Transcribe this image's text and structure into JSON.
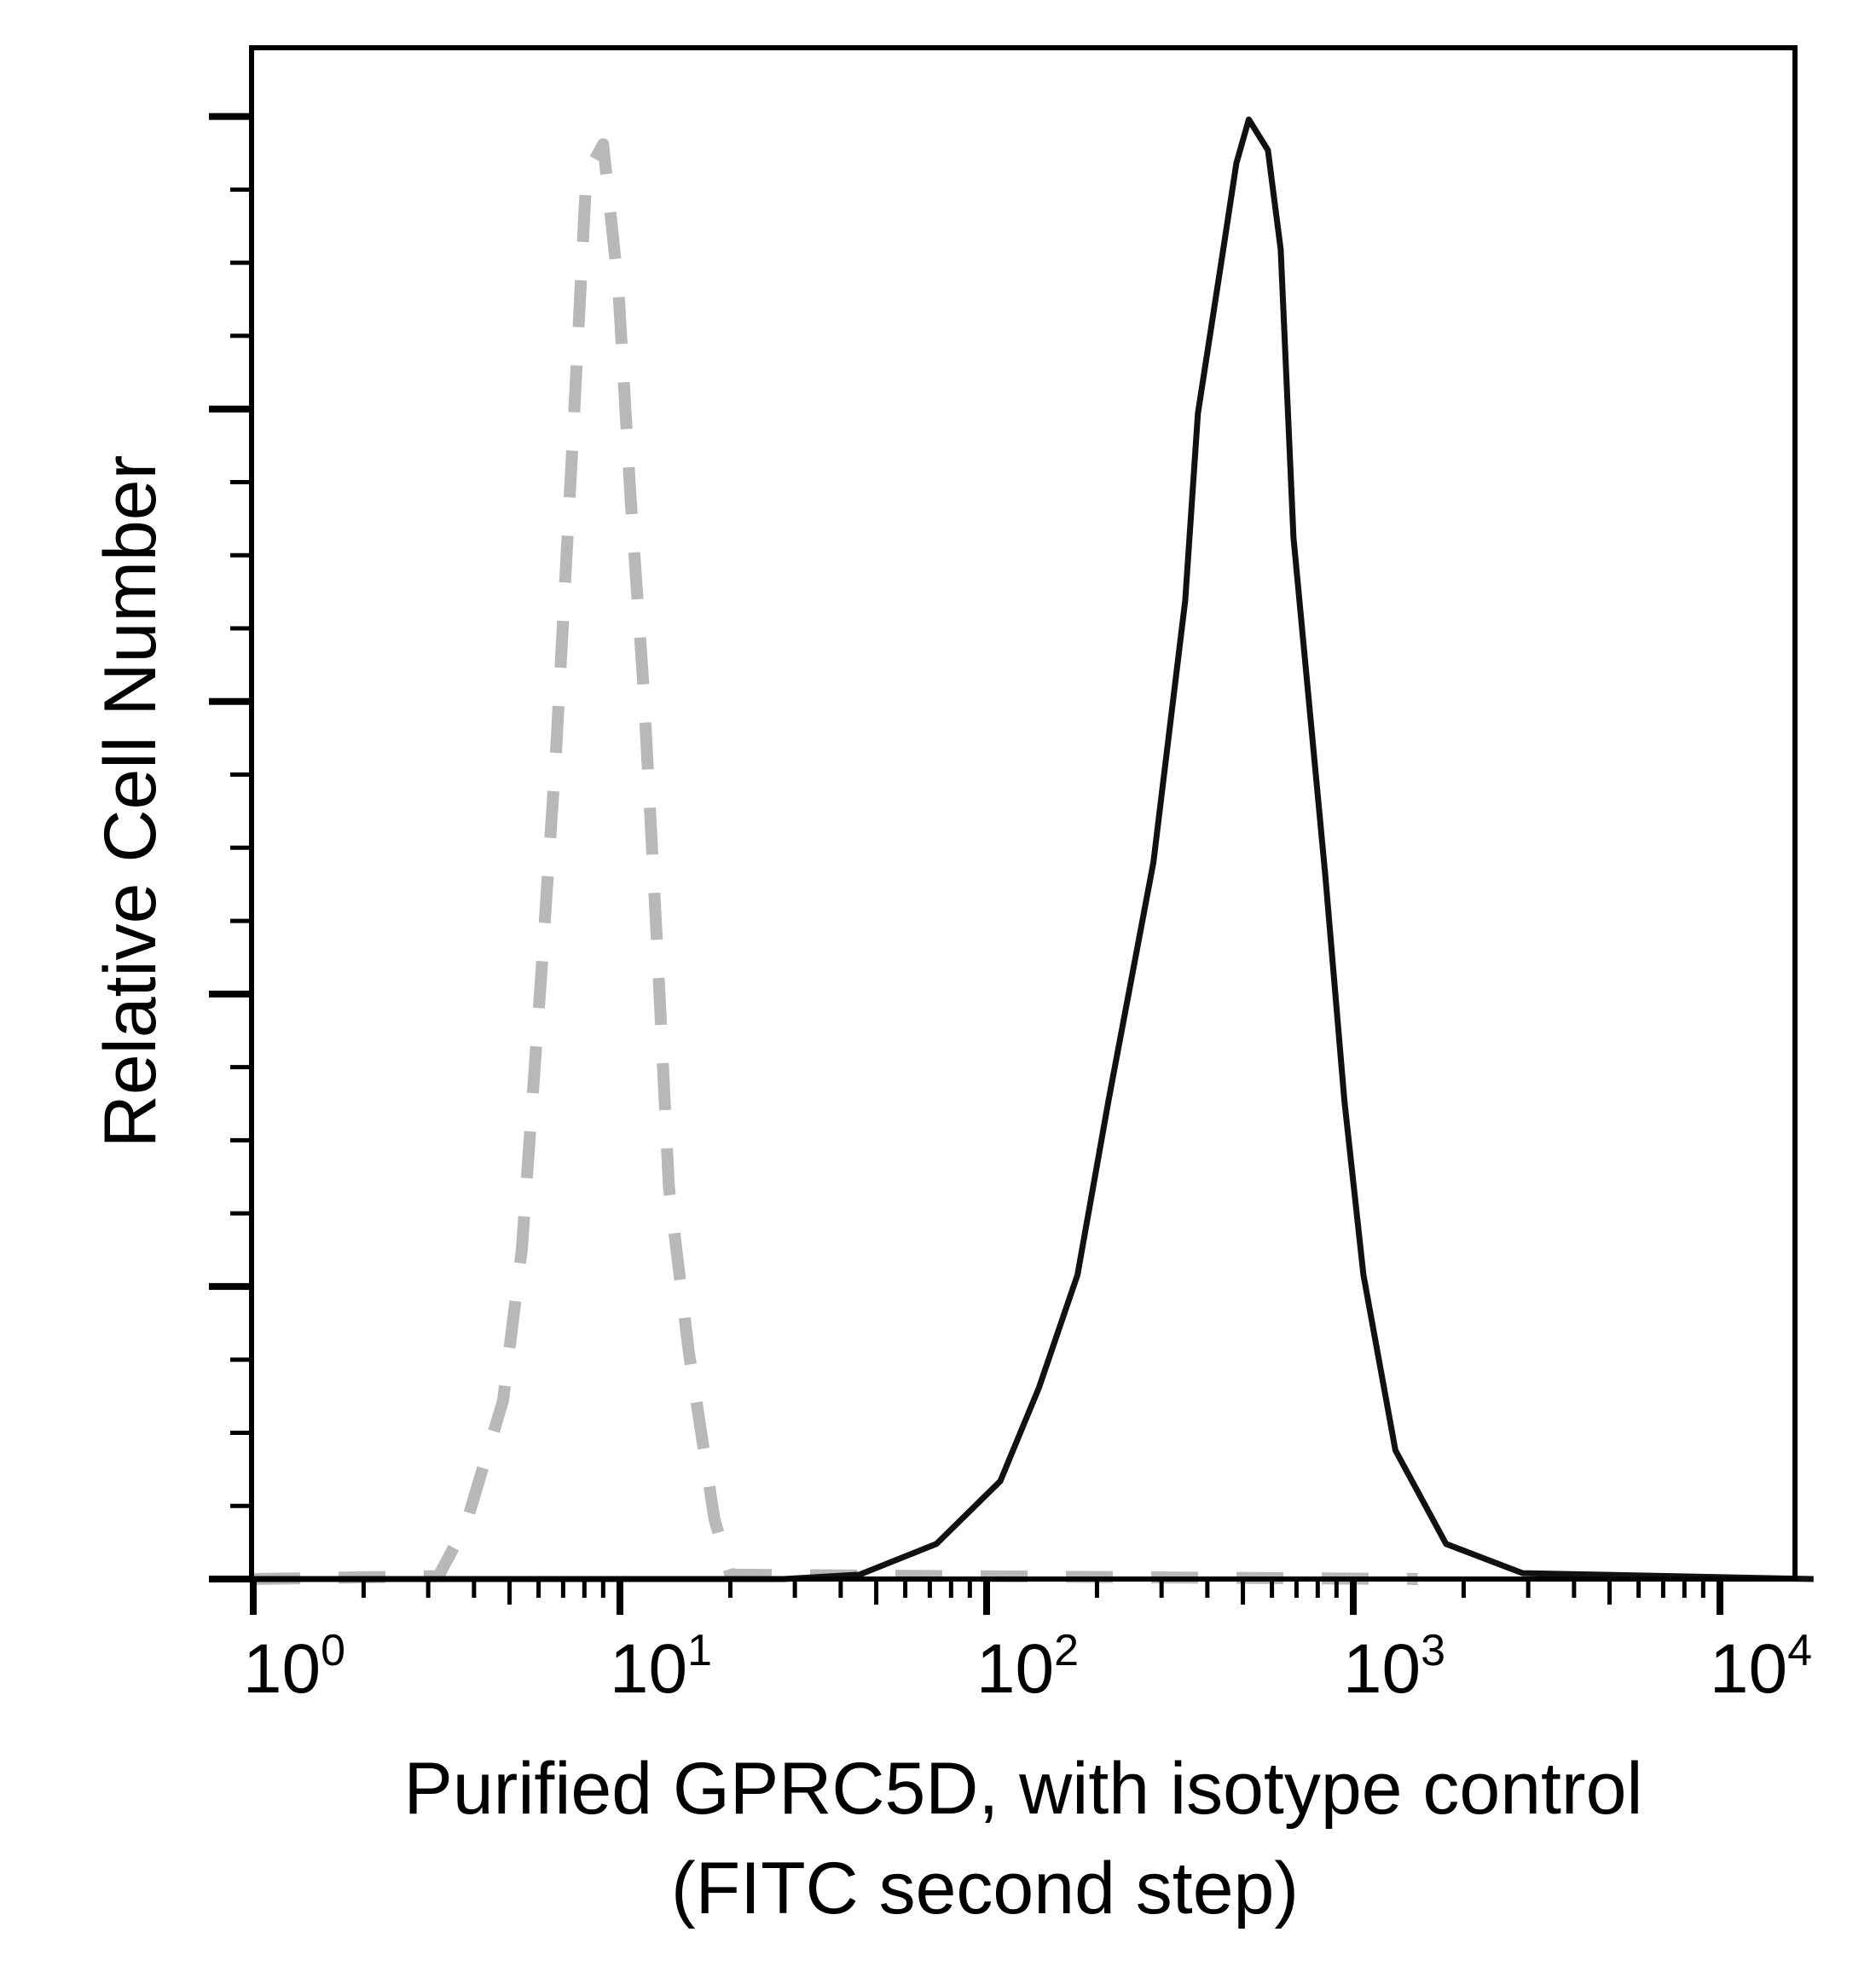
{
  "chart_data": {
    "type": "line",
    "xlabel": [
      "Purified GPRC5D, with isotype control",
      "(FITC second step)"
    ],
    "ylabel": "Relative Cell Number",
    "x_scale": "log",
    "xlim": [
      1,
      18000
    ],
    "ylim": [
      0,
      104.7
    ],
    "x_ticks": [
      {
        "base": "10",
        "exp": "0",
        "value": 1
      },
      {
        "base": "10",
        "exp": "1",
        "value": 10
      },
      {
        "base": "10",
        "exp": "2",
        "value": 100
      },
      {
        "base": "10",
        "exp": "3",
        "value": 1000
      },
      {
        "base": "10",
        "exp": "4",
        "value": 10000
      }
    ],
    "y_major_ticks": [
      0,
      20,
      40,
      60,
      80,
      100
    ],
    "y_tick_labels_shown": false,
    "grid": false,
    "legend": "none",
    "series": [
      {
        "style": "dashed",
        "color": "#b8b8b8",
        "x": [
          1,
          3.2,
          3.8,
          4.8,
          5.4,
          6.1,
          6.7,
          7.5,
          8.1,
          9.0,
          9.9,
          10.7,
          11.6,
          12.6,
          13.6,
          15.4,
          18.1,
          20,
          1500
        ],
        "y": [
          0,
          0.2,
          3.7,
          12.2,
          22.5,
          41.3,
          56.7,
          79.7,
          96,
          98.1,
          88.3,
          73.8,
          60.9,
          43.8,
          26.8,
          15.6,
          4.1,
          0.3,
          0
        ]
      },
      {
        "style": "solid",
        "color": "#111111",
        "x": [
          1,
          28,
          45,
          73,
          109,
          139,
          177,
          215,
          285,
          348,
          377,
          442,
          480,
          519,
          585,
          634,
          687,
          839,
          946,
          1066,
          1303,
          1791,
          2897,
          18000
        ],
        "y": [
          0,
          0,
          0.3,
          2.4,
          6.7,
          13.1,
          20.8,
          32.7,
          49,
          66.9,
          79.7,
          90.9,
          96.8,
          99.8,
          97.7,
          90.9,
          71.2,
          48.1,
          32.7,
          20.8,
          8.8,
          2.4,
          0.4,
          0
        ]
      }
    ]
  }
}
